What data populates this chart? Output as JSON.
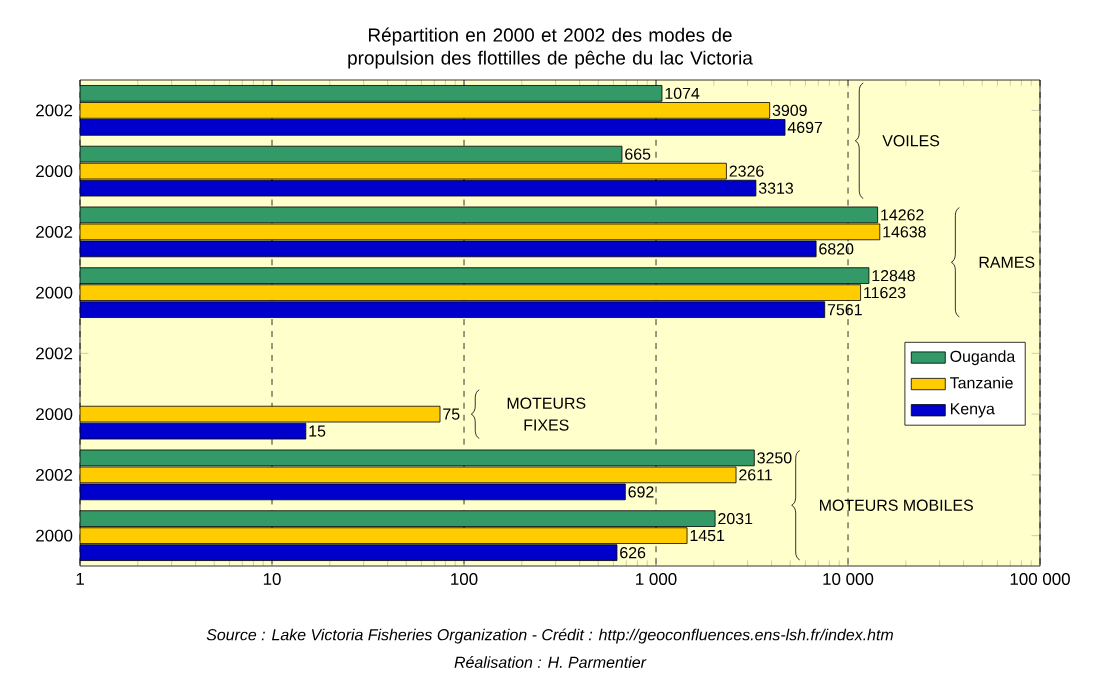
{
  "chart_data": {
    "type": "bar",
    "orientation": "horizontal",
    "title": "Répartition en 2000 et 2002 des modes de propulsion des flottilles de pêche du lac Victoria",
    "categories": [
      "2002",
      "2000",
      "2002",
      "2000",
      "2002",
      "2000",
      "2002",
      "2000"
    ],
    "series": [
      {
        "name": "Ouganda",
        "color": "#339966",
        "values": [
          1074,
          665,
          14262,
          12848,
          null,
          null,
          3250,
          2031
        ]
      },
      {
        "name": "Tanzanie",
        "color": "#ffcc00",
        "values": [
          3909,
          2326,
          14638,
          11623,
          null,
          75,
          2611,
          1451
        ]
      },
      {
        "name": "Kenya",
        "color": "#0000cc",
        "values": [
          4697,
          3313,
          6820,
          7561,
          null,
          15,
          692,
          626
        ]
      }
    ],
    "log": "x",
    "xlim": [
      1,
      100000
    ],
    "xticks": [
      1,
      10,
      100,
      {
        "value": 1000,
        "label": "1 000"
      },
      {
        "value": 10000,
        "label": "10 000"
      },
      {
        "value": 100000,
        "label": "100 000"
      }
    ],
    "grid": "x",
    "legend": "right",
    "data_labels": true,
    "annotations": [
      "VOILES",
      "RAMES",
      "MOTEURS FIXES",
      "MOTEURS MOBILES",
      "Source : Lake Victoria Fisheries Organization - Crédit : http://geoconfluences.ens-lsh.fr/index.htm",
      "Réalisation : H. Parmentier"
    ]
  }
}
